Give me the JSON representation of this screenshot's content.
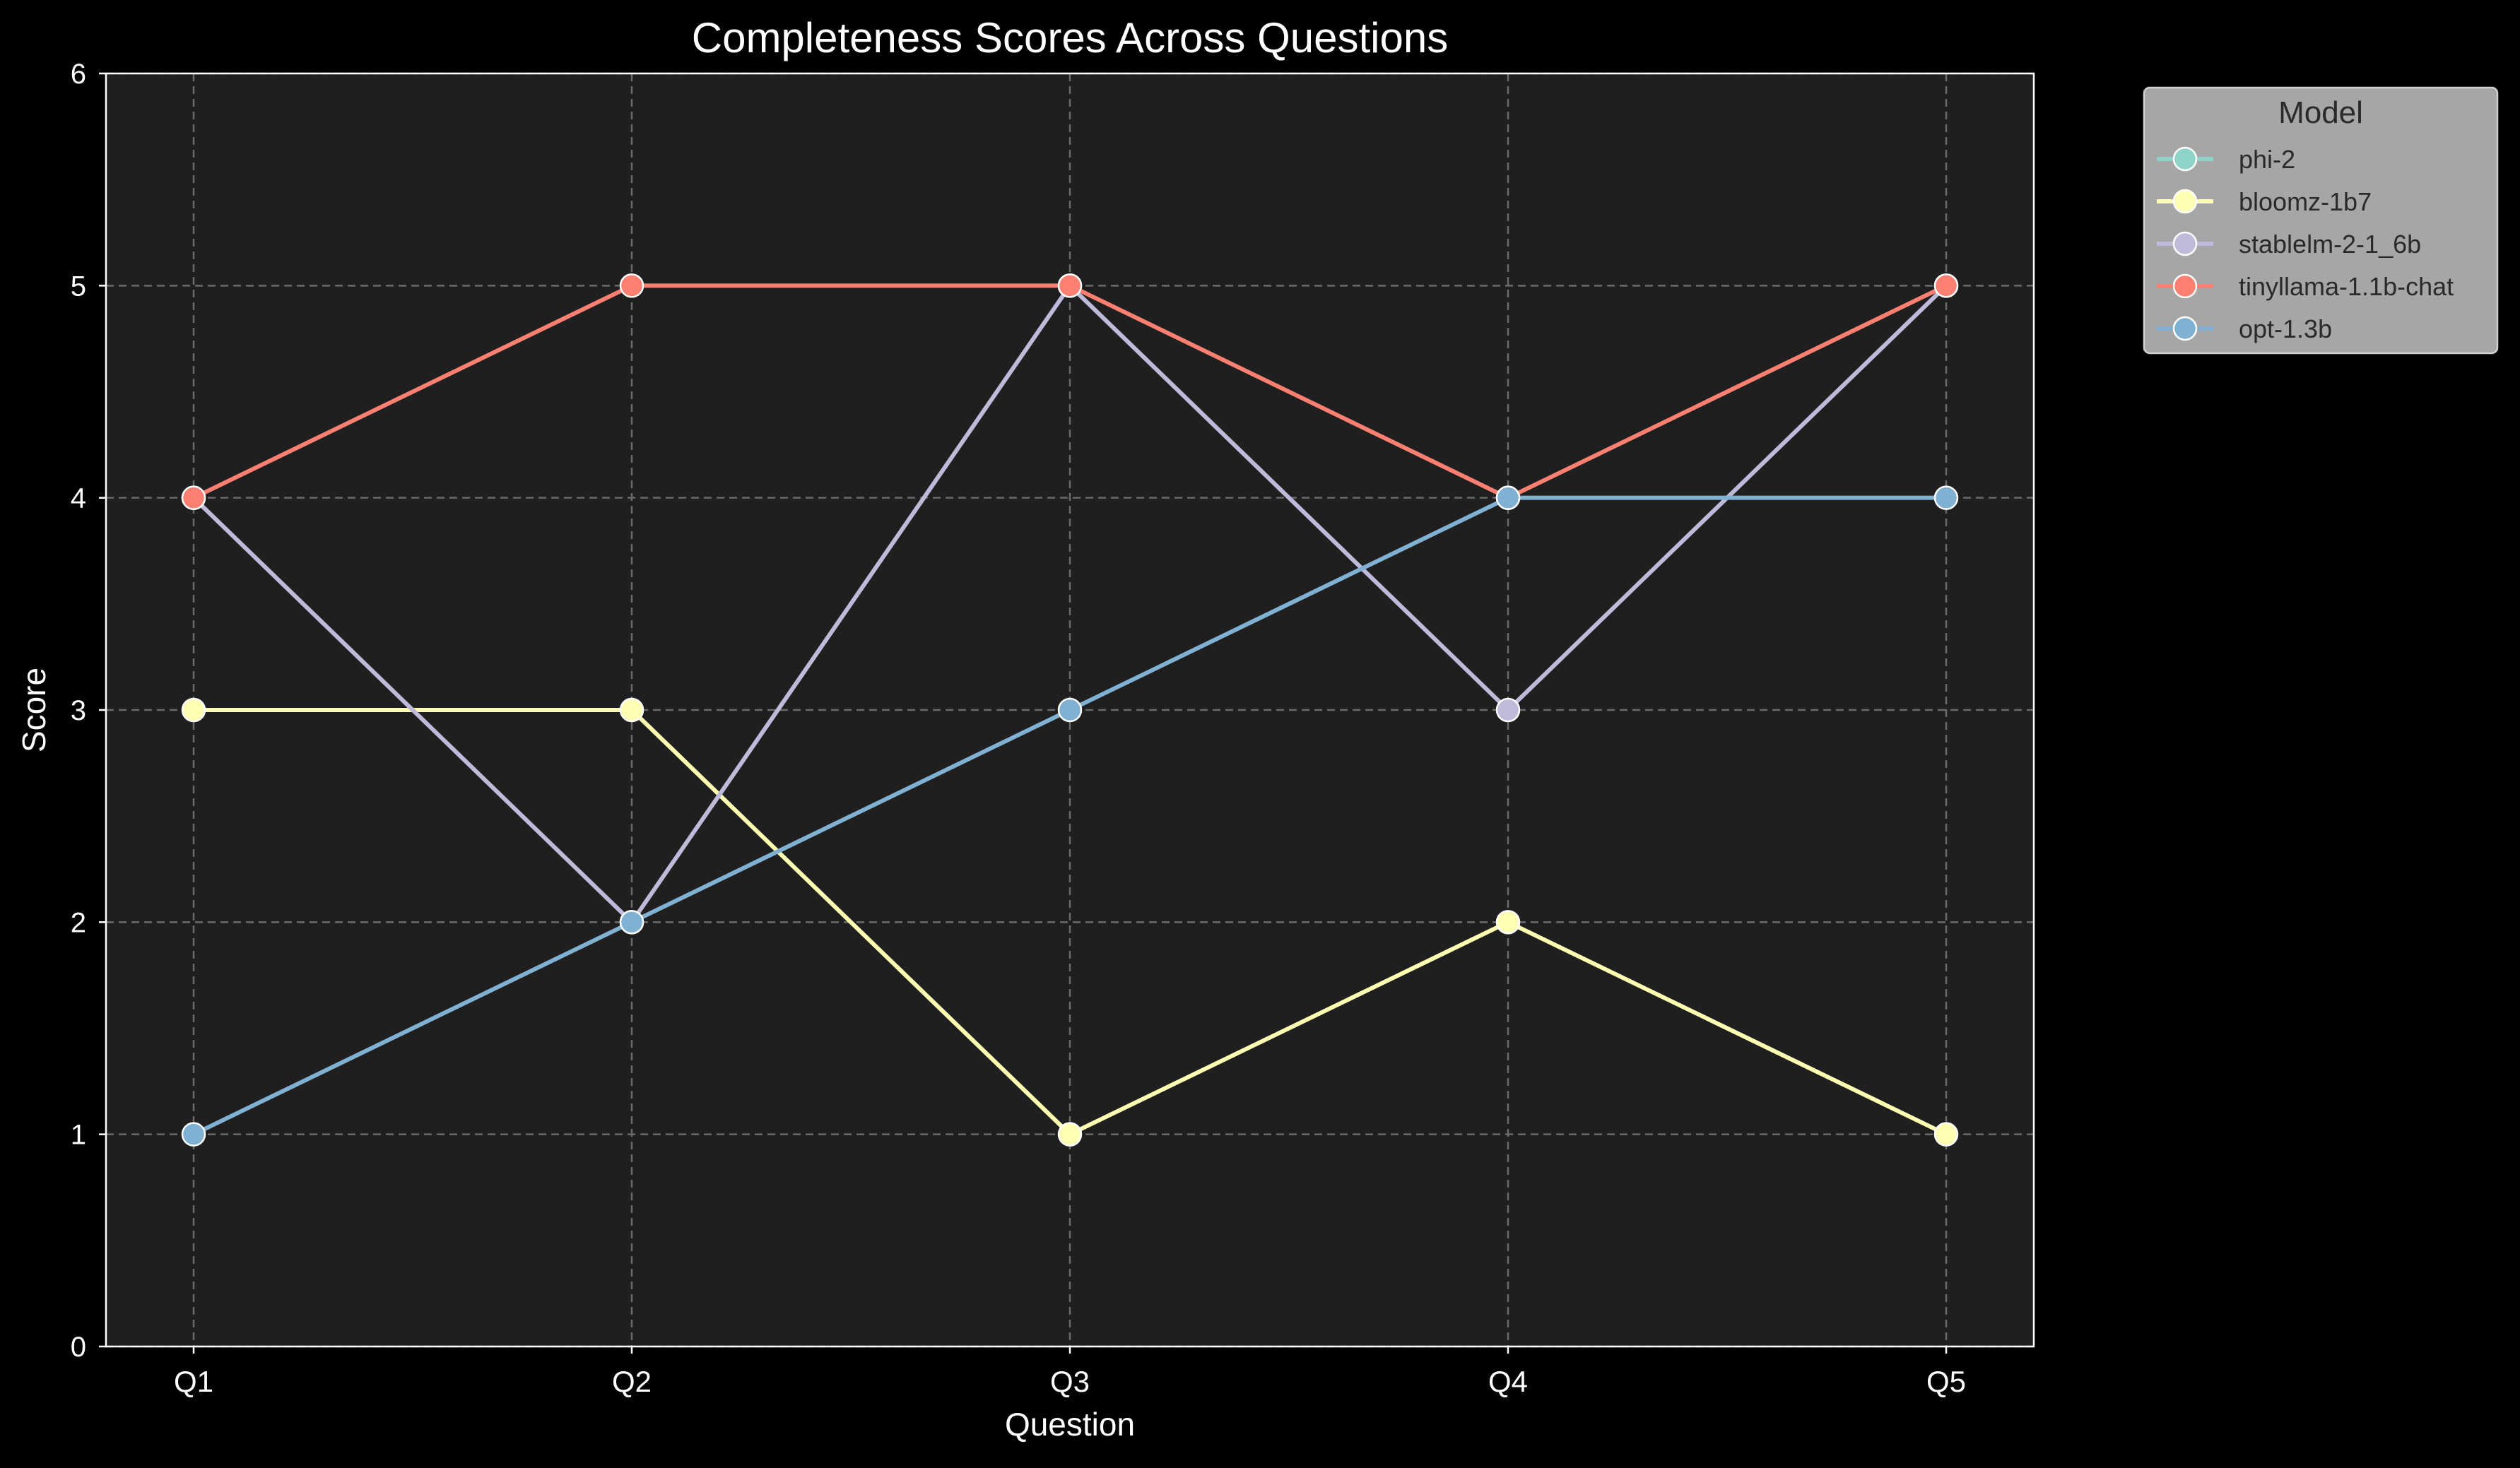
{
  "chart_data": {
    "type": "line",
    "title": "Completeness Scores Across Questions",
    "xlabel": "Question",
    "ylabel": "Score",
    "categories": [
      "Q1",
      "Q2",
      "Q3",
      "Q4",
      "Q5"
    ],
    "ylim": [
      0,
      6
    ],
    "yticks": [
      0,
      1,
      2,
      3,
      4,
      5,
      6
    ],
    "grid": true,
    "legend": {
      "title": "Model",
      "placement": "outside-top-right"
    },
    "series": [
      {
        "name": "phi-2",
        "color": "#8dd3c7",
        "values": [
          null,
          null,
          null,
          null,
          null
        ]
      },
      {
        "name": "bloomz-1b7",
        "color": "#ffffb3",
        "values": [
          3,
          3,
          1,
          2,
          1
        ]
      },
      {
        "name": "stablelm-2-1_6b",
        "color": "#bebada",
        "values": [
          4,
          2,
          5,
          3,
          5
        ]
      },
      {
        "name": "tinyllama-1.1b-chat",
        "color": "#fb8072",
        "values": [
          4,
          5,
          5,
          4,
          5
        ]
      },
      {
        "name": "opt-1.3b",
        "color": "#80b1d3",
        "values": [
          1,
          2,
          3,
          4,
          4
        ]
      }
    ],
    "colors": {
      "background": "#000000",
      "plot_background": "#1f1f1f",
      "grid": "#6b6b6b",
      "text": "#ffffff",
      "legend_background": "#a6a6a6",
      "legend_text": "#2a2a2a"
    }
  }
}
